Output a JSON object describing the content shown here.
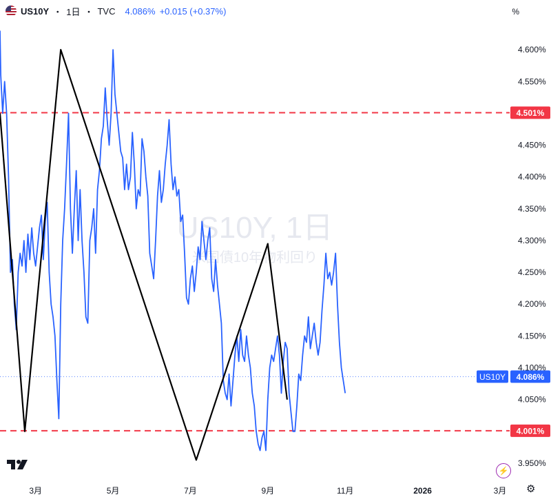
{
  "header": {
    "symbol": "US10Y",
    "sep1": "・",
    "interval": "1日",
    "sep2": "・",
    "source": "TVC",
    "last_price": "4.086%",
    "change": "+0.015 (+0.37%)",
    "unit_label": "%"
  },
  "watermark": {
    "line1": "US10Y, 1日",
    "line2": "米国債10年物利回り"
  },
  "colors": {
    "series": "#2962ff",
    "zigzag": "#000000",
    "level_line": "#f23645",
    "badge_red": "#f23645",
    "badge_blue": "#2962ff"
  },
  "badges": {
    "symbol_tag": "US10Y",
    "last_value": "4.086%",
    "upper_level": "4.501%",
    "lower_level": "4.001%"
  },
  "icons": {
    "flag": "us-flag-icon",
    "logo": "tradingview-logo-icon",
    "bolt": "lightning-icon",
    "settings": "gear-icon"
  },
  "chart_data": {
    "type": "line",
    "title": "US10Y, 1日",
    "subtitle": "米国債10年物利回り",
    "ylim": [
      3.925,
      4.65
    ],
    "y_ticks": [
      "3.950%",
      "4.000%",
      "4.050%",
      "4.100%",
      "4.150%",
      "4.200%",
      "4.250%",
      "4.300%",
      "4.350%",
      "4.400%",
      "4.450%",
      "4.500%",
      "4.550%",
      "4.600%"
    ],
    "y_tick_values": [
      3.95,
      4.0,
      4.05,
      4.1,
      4.15,
      4.2,
      4.25,
      4.3,
      4.35,
      4.4,
      4.45,
      4.5,
      4.55,
      4.6
    ],
    "x_ticks": [
      "3月",
      "5月",
      "7月",
      "9月",
      "11月",
      "2026",
      "3月"
    ],
    "x_tick_positions": [
      2,
      4,
      6,
      8,
      10,
      12,
      14
    ],
    "xlim": [
      1.08,
      14.25
    ],
    "grid": false,
    "series": [
      {
        "values": [
          [
            1.08,
            4.63
          ],
          [
            1.1,
            4.56
          ],
          [
            1.15,
            4.5
          ],
          [
            1.2,
            4.55
          ],
          [
            1.25,
            4.5
          ],
          [
            1.3,
            4.4
          ],
          [
            1.35,
            4.25
          ],
          [
            1.4,
            4.27
          ],
          [
            1.45,
            4.2
          ],
          [
            1.5,
            4.16
          ],
          [
            1.55,
            4.25
          ],
          [
            1.6,
            4.28
          ],
          [
            1.65,
            4.26
          ],
          [
            1.7,
            4.3
          ],
          [
            1.75,
            4.25
          ],
          [
            1.8,
            4.31
          ],
          [
            1.85,
            4.27
          ],
          [
            1.9,
            4.32
          ],
          [
            1.95,
            4.28
          ],
          [
            2.0,
            4.26
          ],
          [
            2.05,
            4.29
          ],
          [
            2.1,
            4.32
          ],
          [
            2.15,
            4.34
          ],
          [
            2.2,
            4.27
          ],
          [
            2.25,
            4.33
          ],
          [
            2.3,
            4.36
          ],
          [
            2.35,
            4.25
          ],
          [
            2.4,
            4.2
          ],
          [
            2.45,
            4.18
          ],
          [
            2.5,
            4.15
          ],
          [
            2.55,
            4.08
          ],
          [
            2.6,
            4.02
          ],
          [
            2.65,
            4.2
          ],
          [
            2.7,
            4.3
          ],
          [
            2.75,
            4.35
          ],
          [
            2.8,
            4.42
          ],
          [
            2.85,
            4.5
          ],
          [
            2.9,
            4.35
          ],
          [
            2.95,
            4.28
          ],
          [
            3.0,
            4.35
          ],
          [
            3.05,
            4.41
          ],
          [
            3.1,
            4.3
          ],
          [
            3.15,
            4.38
          ],
          [
            3.2,
            4.3
          ],
          [
            3.25,
            4.25
          ],
          [
            3.3,
            4.18
          ],
          [
            3.35,
            4.17
          ],
          [
            3.4,
            4.3
          ],
          [
            3.45,
            4.32
          ],
          [
            3.5,
            4.35
          ],
          [
            3.55,
            4.28
          ],
          [
            3.6,
            4.38
          ],
          [
            3.65,
            4.41
          ],
          [
            3.7,
            4.46
          ],
          [
            3.75,
            4.48
          ],
          [
            3.8,
            4.54
          ],
          [
            3.85,
            4.49
          ],
          [
            3.9,
            4.45
          ],
          [
            3.95,
            4.5
          ],
          [
            4.0,
            4.6
          ],
          [
            4.05,
            4.53
          ],
          [
            4.1,
            4.5
          ],
          [
            4.15,
            4.47
          ],
          [
            4.2,
            4.44
          ],
          [
            4.25,
            4.43
          ],
          [
            4.3,
            4.38
          ],
          [
            4.35,
            4.42
          ],
          [
            4.4,
            4.38
          ],
          [
            4.45,
            4.4
          ],
          [
            4.5,
            4.47
          ],
          [
            4.55,
            4.42
          ],
          [
            4.6,
            4.35
          ],
          [
            4.65,
            4.38
          ],
          [
            4.7,
            4.37
          ],
          [
            4.75,
            4.46
          ],
          [
            4.8,
            4.44
          ],
          [
            4.85,
            4.4
          ],
          [
            4.9,
            4.37
          ],
          [
            4.95,
            4.28
          ],
          [
            5.0,
            4.26
          ],
          [
            5.05,
            4.24
          ],
          [
            5.1,
            4.3
          ],
          [
            5.15,
            4.37
          ],
          [
            5.2,
            4.41
          ],
          [
            5.25,
            4.36
          ],
          [
            5.3,
            4.38
          ],
          [
            5.35,
            4.42
          ],
          [
            5.4,
            4.45
          ],
          [
            5.45,
            4.49
          ],
          [
            5.5,
            4.42
          ],
          [
            5.55,
            4.38
          ],
          [
            5.6,
            4.4
          ],
          [
            5.65,
            4.37
          ],
          [
            5.7,
            4.38
          ],
          [
            5.75,
            4.33
          ],
          [
            5.8,
            4.34
          ],
          [
            5.85,
            4.28
          ],
          [
            5.9,
            4.21
          ],
          [
            5.95,
            4.2
          ],
          [
            6.0,
            4.24
          ],
          [
            6.05,
            4.26
          ],
          [
            6.1,
            4.22
          ],
          [
            6.15,
            4.25
          ],
          [
            6.2,
            4.29
          ],
          [
            6.25,
            4.27
          ],
          [
            6.3,
            4.33
          ],
          [
            6.35,
            4.3
          ],
          [
            6.4,
            4.27
          ],
          [
            6.45,
            4.3
          ],
          [
            6.5,
            4.32
          ],
          [
            6.55,
            4.24
          ],
          [
            6.6,
            4.22
          ],
          [
            6.65,
            4.27
          ],
          [
            6.7,
            4.23
          ],
          [
            6.75,
            4.2
          ],
          [
            6.8,
            4.17
          ],
          [
            6.85,
            4.08
          ],
          [
            6.9,
            4.06
          ],
          [
            6.95,
            4.05
          ],
          [
            7.0,
            4.09
          ],
          [
            7.05,
            4.04
          ],
          [
            7.1,
            4.08
          ],
          [
            7.15,
            4.12
          ],
          [
            7.2,
            4.15
          ],
          [
            7.25,
            4.11
          ],
          [
            7.3,
            4.16
          ],
          [
            7.35,
            4.12
          ],
          [
            7.4,
            4.11
          ],
          [
            7.45,
            4.15
          ],
          [
            7.5,
            4.12
          ],
          [
            7.55,
            4.1
          ],
          [
            7.6,
            4.06
          ],
          [
            7.65,
            4.04
          ],
          [
            7.7,
            4.0
          ],
          [
            7.75,
            3.98
          ],
          [
            7.8,
            3.97
          ],
          [
            7.85,
            3.99
          ],
          [
            7.9,
            4.0
          ],
          [
            7.95,
            3.97
          ],
          [
            8.0,
            4.05
          ],
          [
            8.05,
            4.1
          ],
          [
            8.1,
            4.12
          ],
          [
            8.15,
            4.11
          ],
          [
            8.2,
            4.13
          ],
          [
            8.25,
            4.15
          ],
          [
            8.3,
            4.12
          ],
          [
            8.35,
            4.06
          ],
          [
            8.4,
            4.11
          ],
          [
            8.45,
            4.14
          ],
          [
            8.5,
            4.13
          ],
          [
            8.55,
            4.06
          ],
          [
            8.6,
            4.03
          ],
          [
            8.65,
            4.0
          ],
          [
            8.7,
            4.0
          ],
          [
            8.75,
            4.04
          ],
          [
            8.8,
            4.09
          ],
          [
            8.85,
            4.08
          ],
          [
            8.9,
            4.12
          ],
          [
            8.95,
            4.15
          ],
          [
            9.0,
            4.14
          ],
          [
            9.05,
            4.18
          ],
          [
            9.1,
            4.13
          ],
          [
            9.15,
            4.15
          ],
          [
            9.2,
            4.17
          ],
          [
            9.25,
            4.14
          ],
          [
            9.3,
            4.12
          ],
          [
            9.35,
            4.14
          ],
          [
            9.4,
            4.19
          ],
          [
            9.45,
            4.23
          ],
          [
            9.5,
            4.28
          ],
          [
            9.55,
            4.24
          ],
          [
            9.6,
            4.25
          ],
          [
            9.65,
            4.23
          ],
          [
            9.7,
            4.25
          ],
          [
            9.75,
            4.28
          ],
          [
            9.8,
            4.2
          ],
          [
            9.85,
            4.14
          ],
          [
            9.9,
            4.1
          ],
          [
            9.95,
            4.08
          ],
          [
            10.0,
            4.06
          ]
        ]
      }
    ],
    "zigzag": [
      [
        1.08,
        4.5
      ],
      [
        1.72,
        4.0
      ],
      [
        2.65,
        4.6
      ],
      [
        6.15,
        3.955
      ],
      [
        8.0,
        4.295
      ],
      [
        8.5,
        4.05
      ]
    ],
    "levels": [
      4.501,
      4.001
    ],
    "last_value": 4.086
  }
}
